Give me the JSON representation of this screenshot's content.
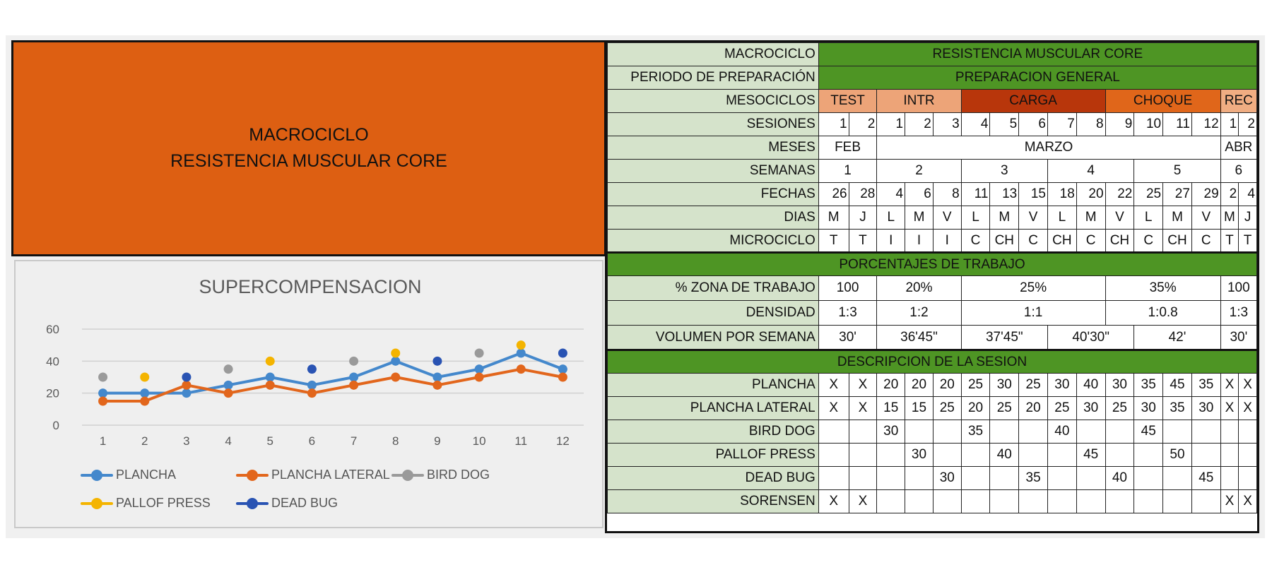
{
  "banner": {
    "line1": "MACROCICLO",
    "line2": "RESISTENCIA MUSCULAR CORE"
  },
  "chart_data": {
    "type": "line",
    "title": "SUPERCOMPENSACION",
    "xlabel": "",
    "ylabel": "",
    "categories": [
      "1",
      "2",
      "3",
      "4",
      "5",
      "6",
      "7",
      "8",
      "9",
      "10",
      "11",
      "12"
    ],
    "ylim": [
      0,
      60
    ],
    "yticks": [
      "0",
      "20",
      "40",
      "60"
    ],
    "grid": true,
    "legend_position": "bottom",
    "series": [
      {
        "name": "PLANCHA",
        "style": "line",
        "color": "#4488cc",
        "values": [
          20,
          20,
          20,
          25,
          30,
          25,
          30,
          40,
          30,
          35,
          45,
          35
        ]
      },
      {
        "name": "PLANCHA LATERAL",
        "style": "line",
        "color": "#e2661c",
        "values": [
          15,
          15,
          25,
          20,
          25,
          20,
          25,
          30,
          25,
          30,
          35,
          30
        ]
      },
      {
        "name": "BIRD DOG",
        "style": "points",
        "color": "#9a9a9a",
        "values": [
          30,
          null,
          null,
          35,
          null,
          null,
          40,
          null,
          null,
          45,
          null,
          null
        ]
      },
      {
        "name": "PALLOF PRESS",
        "style": "points",
        "color": "#f4b400",
        "values": [
          null,
          30,
          null,
          null,
          40,
          null,
          null,
          45,
          null,
          null,
          50,
          null
        ]
      },
      {
        "name": "DEAD BUG",
        "style": "points",
        "color": "#2953b3",
        "values": [
          null,
          null,
          30,
          null,
          null,
          35,
          null,
          null,
          40,
          null,
          null,
          45
        ]
      }
    ]
  },
  "table": {
    "macrociclo": {
      "label": "MACROCICLO",
      "value": "RESISTENCIA MUSCULAR CORE"
    },
    "periodo": {
      "label": "PERIODO DE PREPARACIÓN",
      "value": "PREPARACION GENERAL"
    },
    "mesociclos": {
      "label": "MESOCICLOS",
      "items": [
        "TEST",
        "INTR",
        "CARGA",
        "CHOQUE",
        "REC"
      ]
    },
    "sesiones": {
      "label": "SESIONES",
      "values": [
        "1",
        "2",
        "1",
        "2",
        "3",
        "4",
        "5",
        "6",
        "7",
        "8",
        "9",
        "10",
        "11",
        "12",
        "1",
        "2"
      ]
    },
    "meses": {
      "label": "MESES",
      "items": [
        "FEB",
        "MARZO",
        "ABR"
      ]
    },
    "semanas": {
      "label": "SEMANAS",
      "items": [
        "1",
        "2",
        "3",
        "4",
        "5",
        "6"
      ]
    },
    "fechas": {
      "label": "FECHAS",
      "values": [
        "26",
        "28",
        "4",
        "6",
        "8",
        "11",
        "13",
        "15",
        "18",
        "20",
        "22",
        "25",
        "27",
        "29",
        "2",
        "4"
      ]
    },
    "dias": {
      "label": "DIAS",
      "values": [
        "M",
        "J",
        "L",
        "M",
        "V",
        "L",
        "M",
        "V",
        "L",
        "M",
        "V",
        "L",
        "M",
        "V",
        "M",
        "J"
      ]
    },
    "microciclo": {
      "label": "MICROCICLO",
      "values": [
        "T",
        "T",
        "I",
        "I",
        "I",
        "C",
        "CH",
        "C",
        "CH",
        "C",
        "CH",
        "C",
        "CH",
        "C",
        "T",
        "T"
      ]
    },
    "porcentajes_title": "PORCENTAJES DE TRABAJO",
    "zona": {
      "label": "% ZONA DE TRABAJO",
      "items": [
        "100",
        "20%",
        "25%",
        "35%",
        "100"
      ]
    },
    "densidad": {
      "label": "DENSIDAD",
      "items": [
        "1:3",
        "1:2",
        "1:1",
        "1:0.8",
        "1:3"
      ]
    },
    "volumen": {
      "label": "VOLUMEN POR SEMANA",
      "items": [
        "30'",
        "36'45\"",
        "37'45\"",
        "40'30\"",
        "42'",
        "30'"
      ]
    },
    "descripcion_title": "DESCRIPCION DE LA SESION",
    "ejercicios": [
      {
        "label": "PLANCHA",
        "values": [
          "X",
          "X",
          "20",
          "20",
          "20",
          "25",
          "30",
          "25",
          "30",
          "40",
          "30",
          "35",
          "45",
          "35",
          "X",
          "X"
        ]
      },
      {
        "label": "PLANCHA LATERAL",
        "values": [
          "X",
          "X",
          "15",
          "15",
          "25",
          "20",
          "25",
          "20",
          "25",
          "30",
          "25",
          "30",
          "35",
          "30",
          "X",
          "X"
        ]
      },
      {
        "label": "BIRD DOG",
        "values": [
          "",
          "",
          "30",
          "",
          "",
          "35",
          "",
          "",
          "40",
          "",
          "",
          "45",
          "",
          "",
          "",
          ""
        ]
      },
      {
        "label": "PALLOF PRESS",
        "values": [
          "",
          "",
          "",
          "30",
          "",
          "",
          "40",
          "",
          "",
          "45",
          "",
          "",
          "50",
          "",
          "",
          ""
        ]
      },
      {
        "label": "DEAD BUG",
        "values": [
          "",
          "",
          "",
          "",
          "30",
          "",
          "",
          "35",
          "",
          "",
          "40",
          "",
          "",
          "45",
          "",
          ""
        ]
      },
      {
        "label": "SORENSEN",
        "values": [
          "X",
          "X",
          "",
          "",
          "",
          "",
          "",
          "",
          "",
          "",
          "",
          "",
          "",
          "",
          "X",
          "X"
        ]
      }
    ]
  },
  "colors": {
    "banner": "#dd5f12",
    "green": "#4e9524",
    "label_bg": "#d5e3cb",
    "test": "#eda478",
    "carga": "#b8360b",
    "choque": "#e0661a",
    "rec": "#f0ad82"
  }
}
